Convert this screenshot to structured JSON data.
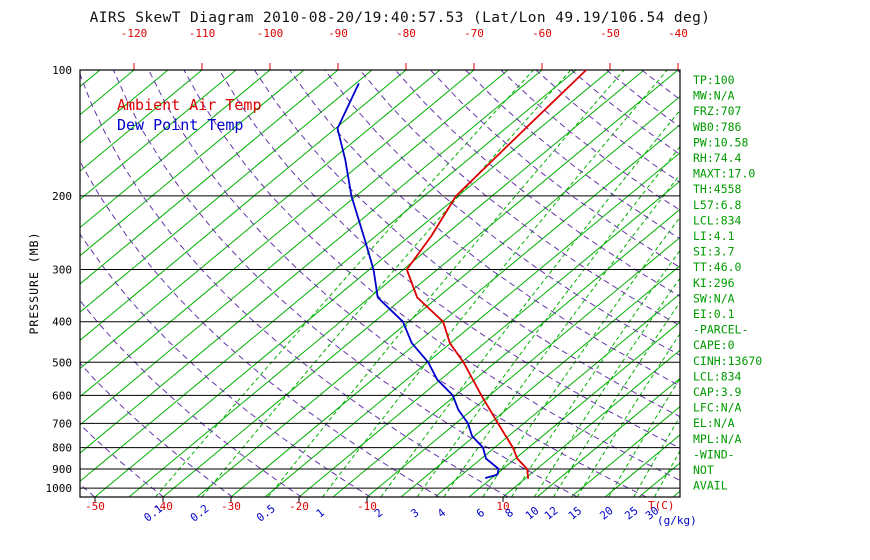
{
  "title": "AIRS SkewT Diagram 2010-08-20/19:40:57.53 (Lat/Lon 49.19/106.54 deg)",
  "legend": [
    {
      "label": "Ambient Air Temp",
      "color": "#dd0000"
    },
    {
      "label": "Dew Point Temp",
      "color": "#0000cc"
    }
  ],
  "stats_panel": {
    "color": "#009b00",
    "lines": [
      "TP:100",
      "MW:N/A",
      "FRZ:707",
      "WB0:786",
      "PW:10.58",
      "RH:74.4",
      "MAXT:17.0",
      "TH:4558",
      "L57:6.8",
      "LCL:834",
      "LI:4.1",
      "SI:3.7",
      "TT:46.0",
      "KI:296",
      "SW:N/A",
      "EI:0.1",
      "-PARCEL-",
      "CAPE:0",
      "CINH:13670",
      "LCL:834",
      "CAP:3.9",
      "LFC:N/A",
      "EL:N/A",
      "MPL:N/A",
      "-WIND-",
      "NOT",
      "AVAIL"
    ]
  },
  "chart_data": {
    "type": "line",
    "subtype": "skew_t_log_p_sounding",
    "title": "AIRS SkewT Diagram 2010-08-20/19:40:57.53 (Lat/Lon 49.19/106.54 deg)",
    "ylabel": "PRESSURE (MB)",
    "xlabel": "T(C)",
    "x2label": "(g/kg)",
    "y_scale": "log",
    "pressure_range_mb": [
      100,
      1050
    ],
    "pressure_ticks_mb": [
      100,
      200,
      300,
      400,
      500,
      600,
      700,
      800,
      900,
      1000
    ],
    "top_temp_ticks_c": [
      -120,
      -110,
      -100,
      -90,
      -80,
      -70,
      -60,
      -50,
      -40
    ],
    "bottom_temp_ticks_c": [
      -50,
      -40,
      -30,
      -20,
      -10,
      10
    ],
    "mixing_ratio_ticks_gkg": [
      0.1,
      0.2,
      0.5,
      1,
      2,
      3,
      4,
      6,
      8,
      10,
      12,
      15,
      20,
      25,
      30
    ],
    "grid": {
      "isotherm_step_c": 5,
      "dry_adiabat_step_k": 10,
      "isotherm_style": "solid green",
      "mixing_ratio_style": "dashed green",
      "dry_adiabat_style": "dashed purple"
    },
    "colors": {
      "isotherm": "#00b000",
      "mixing_ratio": "#00b000",
      "dry_adiabat": "#6633aa",
      "pressure_grid": "#000000",
      "top_axis_labels": "#dd0000",
      "mixing_ratio_labels": "#0000cc"
    },
    "series": [
      {
        "name": "Ambient Air Temp",
        "color": "#dd0000",
        "points_p_t": [
          [
            100,
            -53.5
          ],
          [
            140,
            -52.0
          ],
          [
            200,
            -50.3
          ],
          [
            250,
            -46.8
          ],
          [
            300,
            -44.5
          ],
          [
            350,
            -38.0
          ],
          [
            400,
            -29.9
          ],
          [
            450,
            -25.1
          ],
          [
            500,
            -19.7
          ],
          [
            600,
            -11.2
          ],
          [
            700,
            -3.8
          ],
          [
            800,
            2.7
          ],
          [
            850,
            5.3
          ],
          [
            900,
            8.6
          ],
          [
            945,
            10.3
          ]
        ]
      },
      {
        "name": "Dew Point Temp",
        "color": "#0000cc",
        "points_p_t": [
          [
            108,
            -84.5
          ],
          [
            138,
            -79.7
          ],
          [
            164,
            -73.0
          ],
          [
            200,
            -65.7
          ],
          [
            255,
            -55.9
          ],
          [
            300,
            -49.4
          ],
          [
            350,
            -43.8
          ],
          [
            400,
            -35.8
          ],
          [
            450,
            -30.7
          ],
          [
            500,
            -24.9
          ],
          [
            550,
            -20.5
          ],
          [
            600,
            -15.4
          ],
          [
            650,
            -12.0
          ],
          [
            700,
            -8.2
          ],
          [
            750,
            -5.4
          ],
          [
            800,
            -1.7
          ],
          [
            850,
            0.7
          ],
          [
            900,
            4.4
          ],
          [
            928,
            5.2
          ],
          [
            945,
            4.1
          ]
        ]
      }
    ]
  }
}
